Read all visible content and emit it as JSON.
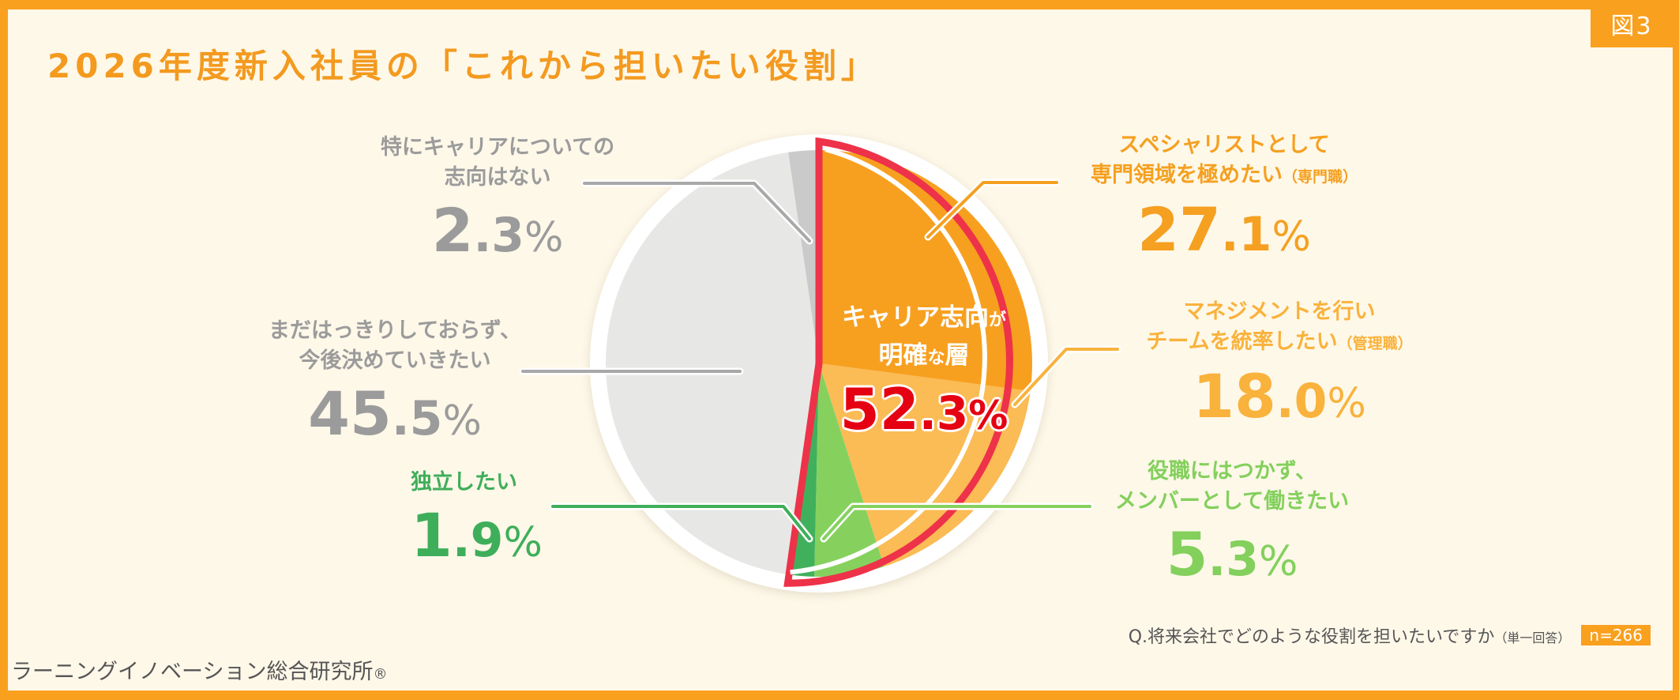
{
  "figure_tag": "図3",
  "title": "2026年度新入社員の「これから担いたい役割」",
  "center": {
    "line1_main": "キャリア志向",
    "line1_small": "が",
    "line2_a": "明確",
    "line2_small": "な",
    "line2_b": "層",
    "total_int": "52",
    "total_dec": ".3",
    "total_sym": "%"
  },
  "labels": {
    "none": {
      "line1": "特にキャリアについての",
      "line2": "志向はない",
      "int": "2",
      "dec": ".3",
      "sym": "%"
    },
    "undecided": {
      "line1": "まだはっきりしておらず、",
      "line2": "今後決めていきたい",
      "int": "45",
      "dec": ".5",
      "sym": "%"
    },
    "independent": {
      "line1": "独立したい",
      "int": "1",
      "dec": ".9",
      "sym": "%"
    },
    "specialist": {
      "line1": "スペシャリストとして",
      "line2": "専門領域を極めたい",
      "note": "（専門職）",
      "int": "27",
      "dec": ".1",
      "sym": "%"
    },
    "manager": {
      "line1": "マネジメントを行い",
      "line2": "チームを統率したい",
      "note": "（管理職）",
      "int": "18",
      "dec": ".0",
      "sym": "%"
    },
    "member": {
      "line1": "役職にはつかず、",
      "line2": "メンバーとして働きたい",
      "int": "5",
      "dec": ".3",
      "sym": "%"
    }
  },
  "footnote": {
    "question": "Q.将来会社でどのような役割を担いたいですか",
    "note": "（単一回答）",
    "n": "n=266"
  },
  "org": {
    "name": "ラーニングイノベーション総合研究所",
    "mark": "®"
  },
  "colors": {
    "frame": "#f9a01e",
    "background": "#fef8e9",
    "specialist": "#f7a020",
    "manager": "#fbbb55",
    "member": "#86d15e",
    "independent": "#41b05c",
    "undecided": "#e7e8e6",
    "none": "#c9cac9",
    "highlight_outline": "#ee3249",
    "total_text": "#e50012"
  },
  "chart_data": {
    "type": "pie",
    "title": "2026年度新入社員の「これから担いたい役割」",
    "subtitle": "Q.将来会社でどのような役割を担いたいですか（単一回答） n=266",
    "start_angle": "12 o'clock, clockwise",
    "categories": [
      "スペシャリストとして専門領域を極めたい（専門職）",
      "マネジメントを行いチームを統率したい（管理職）",
      "役職にはつかず、メンバーとして働きたい",
      "独立したい",
      "まだはっきりしておらず、今後決めていきたい",
      "特にキャリアについての志向はない"
    ],
    "values": [
      27.1,
      18.0,
      5.3,
      1.9,
      45.5,
      2.3
    ],
    "unit": "%",
    "annotations": [
      {
        "text": "キャリア志向が明確な層 52.3%",
        "covers": [
          "専門職",
          "管理職",
          "メンバー",
          "独立"
        ],
        "value": 52.3
      }
    ],
    "n": 266,
    "legend": "none (callout labels)"
  }
}
